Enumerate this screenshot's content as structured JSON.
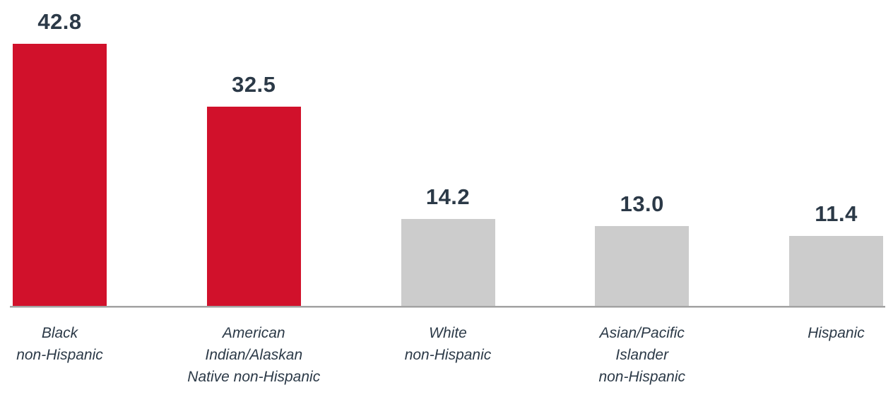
{
  "chart_data": {
    "type": "bar",
    "title": "",
    "xlabel": "",
    "ylabel": "",
    "categories": [
      "Black non-Hispanic",
      "American Indian/Alaskan Native non-Hispanic",
      "White non-Hispanic",
      "Asian/Pacific Islander non-Hispanic",
      "Hispanic"
    ],
    "category_labels_multiline": [
      "Black\nnon-Hispanic",
      "American\nIndian/Alaskan\nNative non-Hispanic",
      "White\nnon-Hispanic",
      "Asian/Pacific\nIslander\nnon-Hispanic",
      "Hispanic"
    ],
    "values": [
      42.8,
      32.5,
      14.2,
      13.0,
      11.4
    ],
    "value_labels": [
      "42.8",
      "32.5",
      "14.2",
      "13.0",
      "11.4"
    ],
    "bar_colors": [
      "#D1112B",
      "#D1112B",
      "#CCCCCC",
      "#CCCCCC",
      "#CCCCCC"
    ],
    "highlight_color": "#D1112B",
    "muted_color": "#CCCCCC",
    "highlighted_categories": [
      "Black non-Hispanic",
      "American Indian/Alaskan Native non-Hispanic"
    ],
    "value_label_color": "#2B3947",
    "category_label_color": "#2B3947",
    "axis_line_color": "#A2A2A2",
    "ylim": [
      0,
      50
    ],
    "grid": false,
    "legend": false,
    "y_axis_ticks_visible": false,
    "data_labels_position": "above-bar"
  }
}
